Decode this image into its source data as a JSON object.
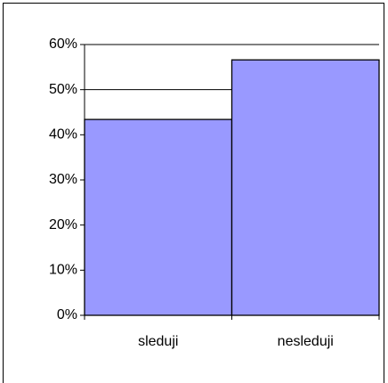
{
  "chart_data": {
    "type": "bar",
    "categories": [
      "sleduji",
      "nesleduji"
    ],
    "values": [
      43.4,
      56.6
    ],
    "color": "#9999ff",
    "ylim": [
      0,
      60
    ],
    "yticks": [
      {
        "value": 0,
        "label": "0%"
      },
      {
        "value": 10,
        "label": "10%"
      },
      {
        "value": 20,
        "label": "20%"
      },
      {
        "value": 30,
        "label": "30%"
      },
      {
        "value": 40,
        "label": "40%"
      },
      {
        "value": 50,
        "label": "50%"
      },
      {
        "value": 60,
        "label": "60%"
      }
    ],
    "grid": true
  }
}
